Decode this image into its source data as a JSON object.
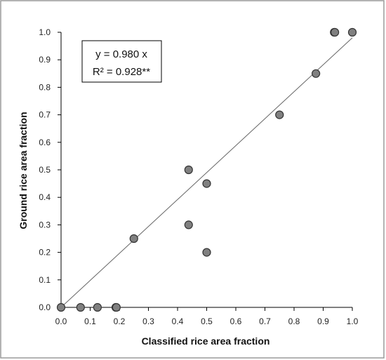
{
  "chart_data": {
    "type": "scatter",
    "xlabel": "Classified rice area fraction",
    "ylabel": "Ground rice area fraction",
    "xlim": [
      0.0,
      1.0
    ],
    "ylim": [
      0.0,
      1.0
    ],
    "x_ticks": [
      "0.0",
      "0.1",
      "0.2",
      "0.3",
      "0.4",
      "0.5",
      "0.6",
      "0.7",
      "0.8",
      "0.9",
      "1.0"
    ],
    "y_ticks": [
      "0.0",
      "0.1",
      "0.2",
      "0.3",
      "0.4",
      "0.5",
      "0.6",
      "0.7",
      "0.8",
      "0.9",
      "1.0"
    ],
    "grid": false,
    "points": [
      {
        "x": 0.0,
        "y": 0.0
      },
      {
        "x": 0.067,
        "y": 0.0
      },
      {
        "x": 0.125,
        "y": 0.0
      },
      {
        "x": 0.188,
        "y": 0.0
      },
      {
        "x": 0.19,
        "y": 0.0
      },
      {
        "x": 0.25,
        "y": 0.25
      },
      {
        "x": 0.438,
        "y": 0.5
      },
      {
        "x": 0.438,
        "y": 0.3
      },
      {
        "x": 0.5,
        "y": 0.45
      },
      {
        "x": 0.5,
        "y": 0.2
      },
      {
        "x": 0.75,
        "y": 0.7
      },
      {
        "x": 0.875,
        "y": 0.85
      },
      {
        "x": 0.938,
        "y": 1.0
      },
      {
        "x": 0.94,
        "y": 1.0
      },
      {
        "x": 1.0,
        "y": 1.0
      }
    ],
    "trendline": {
      "slope": 0.98,
      "intercept": 0.0
    },
    "equation_line1": "y = 0.980 x",
    "equation_line2": "R² = 0.928**",
    "point_color": "#808080",
    "point_stroke": "#333333",
    "line_color": "#666666"
  }
}
